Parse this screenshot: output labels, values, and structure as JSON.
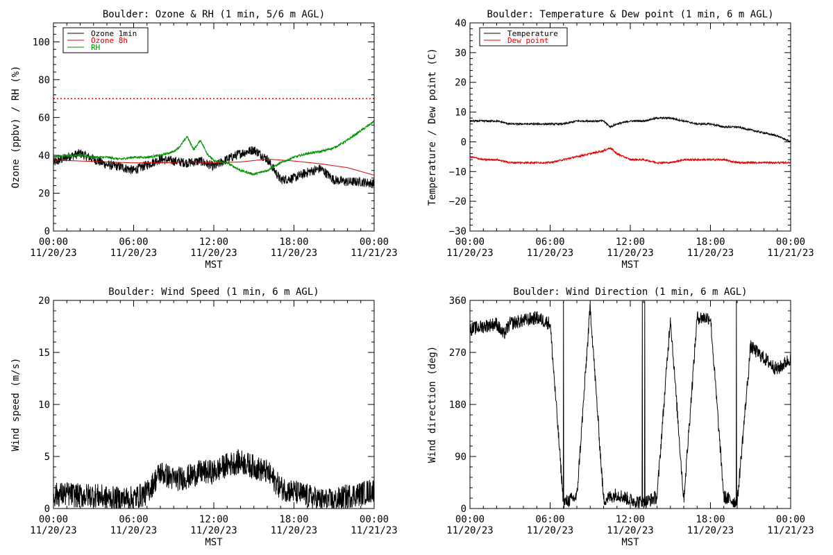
{
  "colors": {
    "black": "#000000",
    "red": "#e00000",
    "green": "#009000"
  },
  "chart_data": [
    {
      "id": "ozone",
      "type": "line",
      "title": "Boulder: Ozone & RH (1 min, 5/6 m AGL)",
      "xlabel": "MST",
      "ylabel": "Ozone (ppbv) / RH (%)",
      "ylim": [
        0,
        110
      ],
      "xlim": [
        "11/20/23 00:00",
        "11/21/23 00:00"
      ],
      "yticks": [
        "0",
        "20",
        "40",
        "60",
        "80",
        "100"
      ],
      "xticks": [
        {
          "time": "00:00",
          "date": "11/20/23"
        },
        {
          "time": "06:00",
          "date": "11/20/23"
        },
        {
          "time": "12:00",
          "date": "11/20/23"
        },
        {
          "time": "18:00",
          "date": "11/20/23"
        },
        {
          "time": "00:00",
          "date": "11/21/23"
        }
      ],
      "legend_position": "top-left",
      "threshold": {
        "value": 70,
        "color": "red",
        "style": "dotted"
      },
      "series": [
        {
          "name": "Ozone 1min",
          "color": "black",
          "noise": 2.5,
          "x": [
            "00:00",
            "01:00",
            "02:00",
            "03:00",
            "04:00",
            "05:00",
            "06:00",
            "07:00",
            "08:00",
            "09:00",
            "10:00",
            "11:00",
            "12:00",
            "13:00",
            "14:00",
            "15:00",
            "16:00",
            "17:00",
            "18:00",
            "19:00",
            "20:00",
            "21:00",
            "22:00",
            "23:00",
            "24:00"
          ],
          "values": [
            36,
            39,
            41,
            38,
            35,
            34,
            32,
            35,
            38,
            37,
            36,
            37,
            34,
            38,
            41,
            43,
            38,
            27,
            28,
            31,
            33,
            27,
            26,
            26,
            25
          ]
        },
        {
          "name": "Ozone 8h",
          "color": "red",
          "noise": 0,
          "x": [
            "00:00",
            "02:00",
            "04:00",
            "06:00",
            "08:00",
            "10:00",
            "12:00",
            "14:00",
            "16:00",
            "18:00",
            "20:00",
            "22:00",
            "24:00"
          ],
          "values": [
            37.5,
            37,
            36.5,
            36,
            36,
            36.5,
            36,
            36.5,
            38,
            37,
            35.5,
            33.5,
            29.5
          ]
        },
        {
          "name": "RH",
          "color": "green",
          "noise": 0.6,
          "x": [
            "00:00",
            "01:00",
            "02:00",
            "03:00",
            "04:00",
            "05:00",
            "06:00",
            "07:00",
            "08:00",
            "09:00",
            "09:30",
            "10:00",
            "10:30",
            "11:00",
            "11:30",
            "12:00",
            "13:00",
            "14:00",
            "15:00",
            "16:00",
            "17:00",
            "18:00",
            "19:00",
            "20:00",
            "21:00",
            "22:00",
            "23:00",
            "24:00"
          ],
          "values": [
            39,
            40,
            40,
            39,
            39,
            38,
            39,
            39,
            40,
            42,
            45,
            50,
            43,
            48,
            41,
            37,
            36,
            32,
            30,
            32,
            36,
            39,
            41,
            42,
            44,
            48,
            53,
            58
          ]
        }
      ]
    },
    {
      "id": "temp",
      "type": "line",
      "title": "Boulder: Temperature & Dew point (1 min, 6 m AGL)",
      "xlabel": "MST",
      "ylabel": "Temperature / Dew point (C)",
      "ylim": [
        -30,
        40
      ],
      "xlim": [
        "11/20/23 00:00",
        "11/21/23 00:00"
      ],
      "yticks": [
        "−30",
        "−20",
        "−10",
        "0",
        "10",
        "20",
        "30",
        "40"
      ],
      "xticks": [
        {
          "time": "00:00",
          "date": "11/20/23"
        },
        {
          "time": "06:00",
          "date": "11/20/23"
        },
        {
          "time": "12:00",
          "date": "11/20/23"
        },
        {
          "time": "18:00",
          "date": "11/20/23"
        },
        {
          "time": "00:00",
          "date": "11/21/23"
        }
      ],
      "legend_position": "top-left",
      "series": [
        {
          "name": "Temperature",
          "color": "black",
          "noise": 0.3,
          "x": [
            "00:00",
            "01:00",
            "02:00",
            "03:00",
            "04:00",
            "05:00",
            "06:00",
            "07:00",
            "08:00",
            "09:00",
            "10:00",
            "10:30",
            "11:00",
            "12:00",
            "13:00",
            "14:00",
            "15:00",
            "16:00",
            "17:00",
            "18:00",
            "19:00",
            "20:00",
            "21:00",
            "22:00",
            "23:00",
            "24:00"
          ],
          "values": [
            7,
            7,
            7,
            6,
            6,
            6,
            6,
            6,
            7,
            7,
            7,
            5,
            6,
            7,
            7,
            8,
            8,
            7,
            6,
            6,
            5,
            5,
            4,
            3,
            2,
            0
          ]
        },
        {
          "name": "Dew point",
          "color": "red",
          "noise": 0.3,
          "x": [
            "00:00",
            "01:00",
            "02:00",
            "03:00",
            "04:00",
            "05:00",
            "06:00",
            "07:00",
            "08:00",
            "09:00",
            "10:00",
            "10:30",
            "11:00",
            "12:00",
            "13:00",
            "14:00",
            "15:00",
            "16:00",
            "17:00",
            "18:00",
            "19:00",
            "20:00",
            "21:00",
            "22:00",
            "23:00",
            "24:00"
          ],
          "values": [
            -5,
            -6,
            -6,
            -7,
            -7,
            -7,
            -7,
            -6,
            -5,
            -4,
            -3,
            -2,
            -4,
            -6,
            -6,
            -7,
            -7,
            -6,
            -6,
            -6,
            -6,
            -7,
            -7,
            -7,
            -7,
            -7
          ]
        }
      ]
    },
    {
      "id": "wspd",
      "type": "line",
      "title": "Boulder: Wind Speed (1 min, 6 m AGL)",
      "xlabel": "MST",
      "ylabel": "Wind speed (m/s)",
      "ylim": [
        0,
        20
      ],
      "xlim": [
        "11/20/23 00:00",
        "11/21/23 00:00"
      ],
      "yticks": [
        "0",
        "5",
        "10",
        "15",
        "20"
      ],
      "xticks": [
        {
          "time": "00:00",
          "date": "11/20/23"
        },
        {
          "time": "06:00",
          "date": "11/20/23"
        },
        {
          "time": "12:00",
          "date": "11/20/23"
        },
        {
          "time": "18:00",
          "date": "11/20/23"
        },
        {
          "time": "00:00",
          "date": "11/21/23"
        }
      ],
      "series": [
        {
          "name": "",
          "color": "black",
          "noise": 1.2,
          "x": [
            "00:00",
            "01:00",
            "02:00",
            "03:00",
            "04:00",
            "05:00",
            "06:00",
            "07:00",
            "08:00",
            "09:00",
            "10:00",
            "11:00",
            "12:00",
            "13:00",
            "14:00",
            "15:00",
            "16:00",
            "17:00",
            "18:00",
            "19:00",
            "20:00",
            "21:00",
            "22:00",
            "23:00",
            "24:00"
          ],
          "values": [
            1.3,
            1.4,
            1.2,
            1.3,
            1.0,
            0.9,
            1.0,
            1.5,
            3.5,
            2.8,
            3.0,
            3.5,
            3.5,
            4.2,
            4.5,
            4.0,
            3.5,
            2.0,
            1.6,
            1.2,
            0.8,
            0.7,
            1.2,
            1.4,
            1.8
          ]
        }
      ]
    },
    {
      "id": "wdir",
      "type": "line",
      "title": "Boulder: Wind Direction (1 min, 6 m AGL)",
      "xlabel": "MST",
      "ylabel": "Wind direction (deg)",
      "ylim": [
        0,
        360
      ],
      "xlim": [
        "11/20/23 00:00",
        "11/21/23 00:00"
      ],
      "yticks": [
        "0",
        "90",
        "180",
        "270",
        "360"
      ],
      "xticks": [
        {
          "time": "00:00",
          "date": "11/20/23"
        },
        {
          "time": "06:00",
          "date": "11/20/23"
        },
        {
          "time": "12:00",
          "date": "11/20/23"
        },
        {
          "time": "18:00",
          "date": "11/20/23"
        },
        {
          "time": "00:00",
          "date": "11/21/23"
        }
      ],
      "series": [
        {
          "name": "",
          "color": "black",
          "noise": 12,
          "x": [
            "00:00",
            "01:00",
            "02:00",
            "02:30",
            "03:00",
            "04:00",
            "05:00",
            "06:00",
            "07:00",
            "08:00",
            "09:00",
            "10:00",
            "11:00",
            "12:00",
            "13:00",
            "14:00",
            "15:00",
            "16:00",
            "17:00",
            "18:00",
            "19:00",
            "20:00",
            "21:00",
            "22:00",
            "23:00",
            "24:00"
          ],
          "values": [
            310,
            315,
            320,
            300,
            320,
            325,
            330,
            320,
            10,
            20,
            350,
            15,
            25,
            15,
            10,
            20,
            330,
            15,
            330,
            330,
            20,
            10,
            280,
            260,
            240,
            260
          ]
        }
      ]
    }
  ]
}
